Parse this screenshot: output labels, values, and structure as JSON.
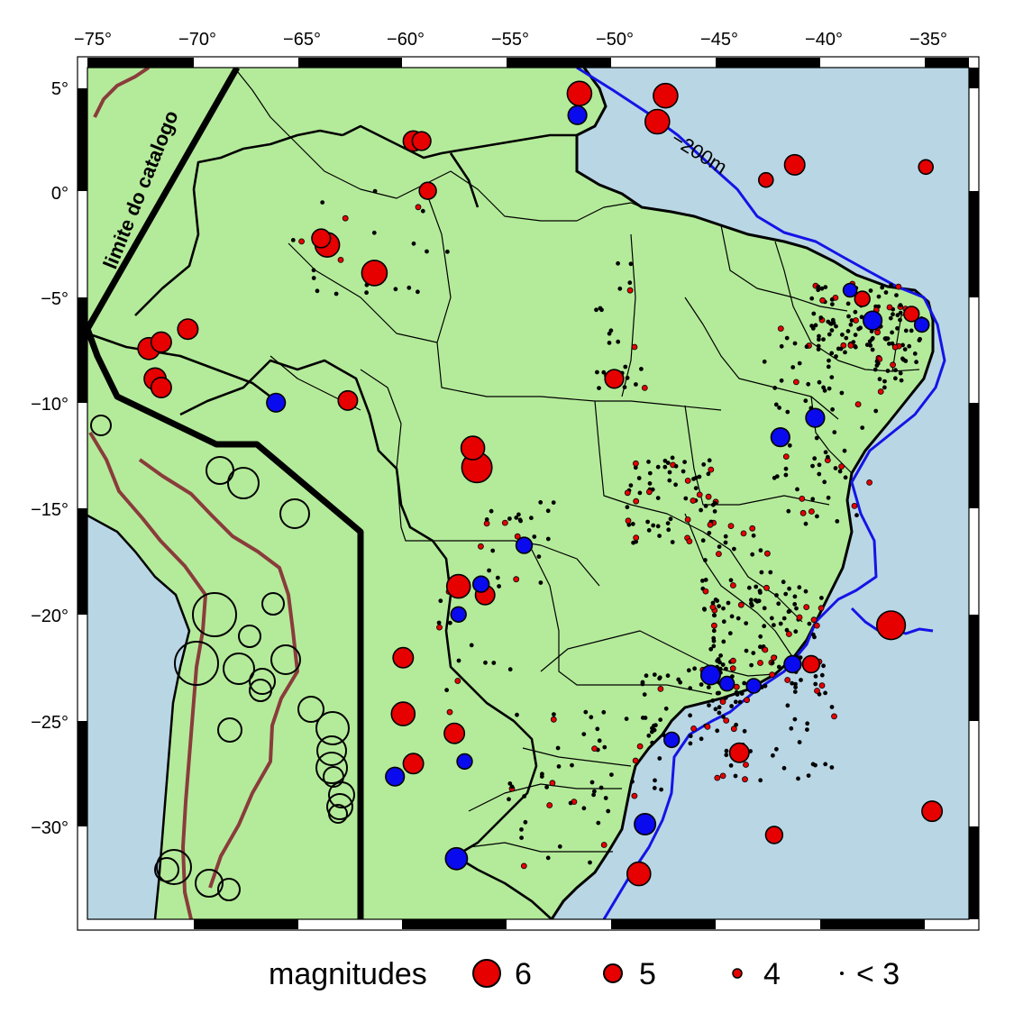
{
  "colors": {
    "ocean": "#b9d6e5",
    "land": "#b4eb9a",
    "border": "#000000",
    "andes_contour": "#8a3c3c",
    "bathymetry": "#1414e6",
    "event_red": "#e60000",
    "event_blue": "#0a0aee"
  },
  "axes": {
    "lon_labels": [
      "−75°",
      "−70°",
      "−65°",
      "−60°",
      "−55°",
      "−50°",
      "−45°",
      "−40°",
      "−35°"
    ],
    "lat_labels": [
      "5°",
      "0°",
      "−5°",
      "−10°",
      "−15°",
      "−20°",
      "−25°",
      "−30°"
    ]
  },
  "annotations": {
    "catalog_limit": "limite do catalogo",
    "isobath": "−200m"
  },
  "legend": {
    "title": "magnitudes",
    "items": [
      {
        "label": "6",
        "symbol": "large-red-circle"
      },
      {
        "label": "5",
        "symbol": "medium-red-circle"
      },
      {
        "label": "4",
        "symbol": "small-red-circle"
      },
      {
        "label": "< 3",
        "symbol": "dot"
      }
    ]
  },
  "chart_data": {
    "type": "scatter",
    "title": "",
    "xlabel": "",
    "ylabel": "",
    "xlim": [
      -76,
      -33
    ],
    "ylim": [
      -33.4,
      6
    ],
    "major_events": [
      {
        "lon": -57.0,
        "lat": -12.5,
        "mag": 6.2,
        "color": "red"
      },
      {
        "lon": -36.8,
        "lat": -19.8,
        "mag": 6.0,
        "color": "red"
      },
      {
        "lon": -62.0,
        "lat": -3.5,
        "mag": 5.6,
        "color": "red"
      },
      {
        "lon": -52.0,
        "lat": 4.8,
        "mag": 5.5,
        "color": "red"
      },
      {
        "lon": -47.8,
        "lat": 4.7,
        "mag": 5.5,
        "color": "red"
      },
      {
        "lon": -48.2,
        "lat": 3.5,
        "mag": 5.5,
        "color": "red"
      },
      {
        "lon": -64.3,
        "lat": -2.2,
        "mag": 5.5,
        "color": "red"
      },
      {
        "lon": -57.2,
        "lat": -11.6,
        "mag": 5.4,
        "color": "red"
      },
      {
        "lon": -57.9,
        "lat": -18.0,
        "mag": 5.4,
        "color": "red"
      },
      {
        "lon": -49.1,
        "lat": -31.3,
        "mag": 5.4,
        "color": "red"
      },
      {
        "lon": -60.6,
        "lat": -23.9,
        "mag": 5.4,
        "color": "red"
      },
      {
        "lon": -73.0,
        "lat": -7.0,
        "mag": 5.2,
        "color": "red"
      },
      {
        "lon": -72.7,
        "lat": -8.4,
        "mag": 5.2,
        "color": "red"
      },
      {
        "lon": -72.4,
        "lat": -6.7,
        "mag": 5.0,
        "color": "red"
      },
      {
        "lon": -72.4,
        "lat": -8.8,
        "mag": 5.0,
        "color": "red"
      },
      {
        "lon": -71.1,
        "lat": -6.1,
        "mag": 5.0,
        "color": "red"
      },
      {
        "lon": -60.1,
        "lat": 2.6,
        "mag": 5.0,
        "color": "red"
      },
      {
        "lon": -59.7,
        "lat": 2.6,
        "mag": 4.8,
        "color": "red"
      },
      {
        "lon": -41.5,
        "lat": 1.5,
        "mag": 5.0,
        "color": "red"
      },
      {
        "lon": -34.8,
        "lat": -28.4,
        "mag": 5.0,
        "color": "red"
      },
      {
        "lon": -58.1,
        "lat": -24.8,
        "mag": 5.0,
        "color": "red"
      },
      {
        "lon": -60.6,
        "lat": -21.3,
        "mag": 5.0,
        "color": "red"
      },
      {
        "lon": -60.1,
        "lat": -26.2,
        "mag": 5.0,
        "color": "red"
      },
      {
        "lon": -63.3,
        "lat": -9.4,
        "mag": 4.9,
        "color": "red"
      },
      {
        "lon": -44.2,
        "lat": -25.7,
        "mag": 4.9,
        "color": "red"
      },
      {
        "lon": -56.6,
        "lat": -18.4,
        "mag": 4.9,
        "color": "red"
      },
      {
        "lon": -64.6,
        "lat": -1.9,
        "mag": 4.8,
        "color": "red"
      },
      {
        "lon": -59.4,
        "lat": 0.3,
        "mag": 4.6,
        "color": "red"
      },
      {
        "lon": -50.3,
        "lat": -8.4,
        "mag": 4.8,
        "color": "red"
      },
      {
        "lon": -40.7,
        "lat": -21.6,
        "mag": 4.6,
        "color": "red"
      },
      {
        "lon": -42.5,
        "lat": -29.5,
        "mag": 4.6,
        "color": "red"
      },
      {
        "lon": -42.9,
        "lat": 0.8,
        "mag": 4.3,
        "color": "red"
      },
      {
        "lon": -35.1,
        "lat": 1.4,
        "mag": 4.3,
        "color": "red"
      },
      {
        "lon": -48.8,
        "lat": -29.0,
        "mag": 5.1,
        "color": "blue"
      },
      {
        "lon": -58.0,
        "lat": -30.6,
        "mag": 5.2,
        "color": "blue"
      },
      {
        "lon": -61.0,
        "lat": -26.8,
        "mag": 4.8,
        "color": "blue"
      },
      {
        "lon": -45.6,
        "lat": -22.1,
        "mag": 4.9,
        "color": "blue"
      },
      {
        "lon": -66.8,
        "lat": -9.5,
        "mag": 4.8,
        "color": "blue"
      },
      {
        "lon": -37.7,
        "lat": -5.7,
        "mag": 4.8,
        "color": "blue"
      },
      {
        "lon": -40.5,
        "lat": -10.2,
        "mag": 4.8,
        "color": "blue"
      },
      {
        "lon": -42.2,
        "lat": -11.1,
        "mag": 4.8,
        "color": "blue"
      },
      {
        "lon": -41.6,
        "lat": -21.6,
        "mag": 4.6,
        "color": "blue"
      },
      {
        "lon": -52.1,
        "lat": 3.8,
        "mag": 4.8,
        "color": "blue"
      },
      {
        "lon": -54.7,
        "lat": -16.1,
        "mag": 4.5,
        "color": "blue"
      },
      {
        "lon": -56.8,
        "lat": -17.9,
        "mag": 4.5,
        "color": "blue"
      },
      {
        "lon": -57.9,
        "lat": -19.3,
        "mag": 4.4,
        "color": "blue"
      },
      {
        "lon": -57.6,
        "lat": -26.1,
        "mag": 4.4,
        "color": "blue"
      },
      {
        "lon": -47.5,
        "lat": -25.1,
        "mag": 4.4,
        "color": "blue"
      },
      {
        "lon": -44.8,
        "lat": -22.5,
        "mag": 4.3,
        "color": "blue"
      },
      {
        "lon": -43.5,
        "lat": -22.6,
        "mag": 4.3,
        "color": "blue"
      },
      {
        "lon": -35.3,
        "lat": -5.9,
        "mag": 4.3,
        "color": "blue"
      },
      {
        "lon": -38.8,
        "lat": -4.3,
        "mag": 4.2,
        "color": "blue"
      },
      {
        "lon": -38.2,
        "lat": -4.7,
        "mag": 4.4,
        "color": "red"
      },
      {
        "lon": -35.8,
        "lat": -5.4,
        "mag": 4.4,
        "color": "red"
      }
    ]
  }
}
